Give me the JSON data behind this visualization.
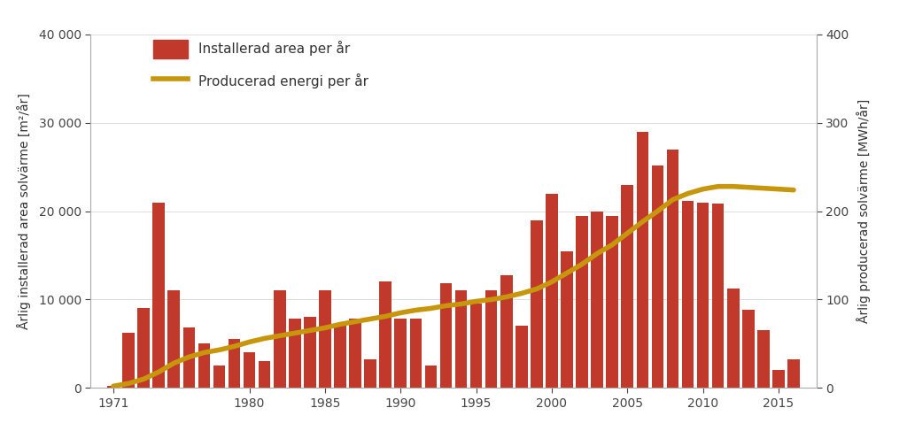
{
  "years": [
    1971,
    1972,
    1973,
    1974,
    1975,
    1976,
    1977,
    1978,
    1979,
    1980,
    1981,
    1982,
    1983,
    1984,
    1985,
    1986,
    1987,
    1988,
    1989,
    1990,
    1991,
    1992,
    1993,
    1994,
    1995,
    1996,
    1997,
    1998,
    1999,
    2000,
    2001,
    2002,
    2003,
    2004,
    2005,
    2006,
    2007,
    2008,
    2009,
    2010,
    2011,
    2012,
    2013,
    2014,
    2015,
    2016
  ],
  "bar_values": [
    200,
    6200,
    9000,
    21000,
    11000,
    6800,
    5000,
    2500,
    5500,
    4000,
    3000,
    11000,
    7800,
    8000,
    11000,
    7000,
    7800,
    3200,
    12000,
    7800,
    7800,
    2500,
    11800,
    11000,
    9500,
    11000,
    12800,
    7000,
    19000,
    22000,
    15500,
    19500,
    20000,
    19500,
    23000,
    29000,
    25200,
    27000,
    21200,
    21000,
    20900,
    11200,
    8800,
    6500,
    2000,
    3200
  ],
  "line_values": [
    2,
    5,
    10,
    18,
    28,
    35,
    40,
    43,
    47,
    52,
    56,
    59,
    62,
    65,
    68,
    72,
    75,
    78,
    81,
    85,
    88,
    90,
    93,
    95,
    98,
    100,
    103,
    107,
    112,
    120,
    130,
    140,
    152,
    162,
    175,
    188,
    200,
    213,
    220,
    225,
    228,
    228,
    227,
    226,
    225,
    224
  ],
  "bar_color": "#c0392b",
  "line_color": "#c8960c",
  "background_color": "#ffffff",
  "ylabel_left": "Årlig installerad area solvärme [m²/år]",
  "ylabel_right": "Årlig producerad solvärme [MWh/år]",
  "legend_bar": "Installerad area per år",
  "legend_line": "Producerad energi per år",
  "ylim_left": [
    0,
    40000
  ],
  "ylim_right": [
    0,
    400
  ],
  "yticks_left": [
    0,
    10000,
    20000,
    30000,
    40000
  ],
  "ytick_labels_left": [
    "0",
    "10 000",
    "20 000",
    "30 000",
    "40 000"
  ],
  "yticks_right": [
    0,
    100,
    200,
    300,
    400
  ],
  "xticks": [
    1971,
    1980,
    1985,
    1990,
    1995,
    2000,
    2005,
    2010,
    2015
  ],
  "xlim": [
    1969.5,
    2017.5
  ]
}
